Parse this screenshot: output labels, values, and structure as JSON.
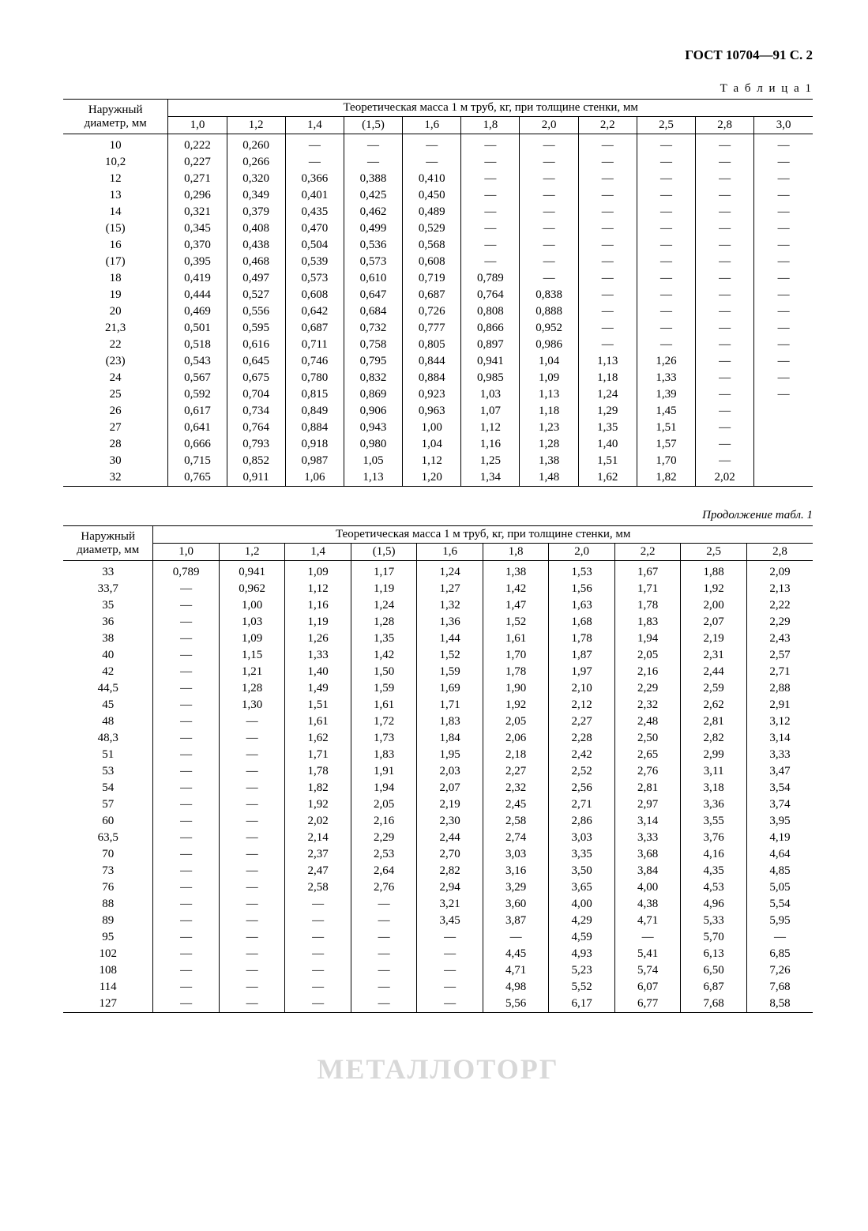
{
  "header": "ГОСТ 10704—91 С. 2",
  "table_label": "Т а б л и ц а  1",
  "cont_label": "Продолжение табл. 1",
  "dash": "—",
  "rowhead_label": "Наружный диаметр, мм",
  "spanner": "Теоретическая масса 1 м труб, кг, при толщине стенки, мм",
  "table1": {
    "cols": [
      "1,0",
      "1,2",
      "1,4",
      "(1,5)",
      "1,6",
      "1,8",
      "2,0",
      "2,2",
      "2,5",
      "2,8",
      "3,0"
    ],
    "rows": [
      {
        "d": "10",
        "v": [
          "0,222",
          "0,260",
          "—",
          "—",
          "—",
          "—",
          "—",
          "—",
          "—",
          "—",
          "—"
        ]
      },
      {
        "d": "10,2",
        "v": [
          "0,227",
          "0,266",
          "—",
          "—",
          "—",
          "—",
          "—",
          "—",
          "—",
          "—",
          "—"
        ]
      },
      {
        "d": "12",
        "v": [
          "0,271",
          "0,320",
          "0,366",
          "0,388",
          "0,410",
          "—",
          "—",
          "—",
          "—",
          "—",
          "—"
        ]
      },
      {
        "d": "13",
        "v": [
          "0,296",
          "0,349",
          "0,401",
          "0,425",
          "0,450",
          "—",
          "—",
          "—",
          "—",
          "—",
          "—"
        ]
      },
      {
        "d": "14",
        "v": [
          "0,321",
          "0,379",
          "0,435",
          "0,462",
          "0,489",
          "—",
          "—",
          "—",
          "—",
          "—",
          "—"
        ]
      },
      {
        "d": "(15)",
        "v": [
          "0,345",
          "0,408",
          "0,470",
          "0,499",
          "0,529",
          "—",
          "—",
          "—",
          "—",
          "—",
          "—"
        ]
      },
      {
        "d": "16",
        "v": [
          "0,370",
          "0,438",
          "0,504",
          "0,536",
          "0,568",
          "—",
          "—",
          "—",
          "—",
          "—",
          "—"
        ]
      },
      {
        "d": "(17)",
        "v": [
          "0,395",
          "0,468",
          "0,539",
          "0,573",
          "0,608",
          "—",
          "—",
          "—",
          "—",
          "—",
          "—"
        ]
      },
      {
        "d": "18",
        "v": [
          "0,419",
          "0,497",
          "0,573",
          "0,610",
          "0,719",
          "0,789",
          "—",
          "—",
          "—",
          "—",
          "—"
        ]
      },
      {
        "d": "19",
        "v": [
          "0,444",
          "0,527",
          "0,608",
          "0,647",
          "0,687",
          "0,764",
          "0,838",
          "—",
          "—",
          "—",
          "—"
        ]
      },
      {
        "d": "20",
        "v": [
          "0,469",
          "0,556",
          "0,642",
          "0,684",
          "0,726",
          "0,808",
          "0,888",
          "—",
          "—",
          "—",
          "—"
        ]
      },
      {
        "d": "21,3",
        "v": [
          "0,501",
          "0,595",
          "0,687",
          "0,732",
          "0,777",
          "0,866",
          "0,952",
          "—",
          "—",
          "—",
          "—"
        ]
      },
      {
        "d": "22",
        "v": [
          "0,518",
          "0,616",
          "0,711",
          "0,758",
          "0,805",
          "0,897",
          "0,986",
          "—",
          "—",
          "—",
          "—"
        ]
      },
      {
        "d": "(23)",
        "v": [
          "0,543",
          "0,645",
          "0,746",
          "0,795",
          "0,844",
          "0,941",
          "1,04",
          "1,13",
          "1,26",
          "—",
          "—"
        ]
      },
      {
        "d": "24",
        "v": [
          "0,567",
          "0,675",
          "0,780",
          "0,832",
          "0,884",
          "0,985",
          "1,09",
          "1,18",
          "1,33",
          "—",
          "—"
        ]
      },
      {
        "d": "25",
        "v": [
          "0,592",
          "0,704",
          "0,815",
          "0,869",
          "0,923",
          "1,03",
          "1,13",
          "1,24",
          "1,39",
          "—",
          "—"
        ]
      },
      {
        "d": "26",
        "v": [
          "0,617",
          "0,734",
          "0,849",
          "0,906",
          "0,963",
          "1,07",
          "1,18",
          "1,29",
          "1,45",
          "—",
          ""
        ]
      },
      {
        "d": "27",
        "v": [
          "0,641",
          "0,764",
          "0,884",
          "0,943",
          "1,00",
          "1,12",
          "1,23",
          "1,35",
          "1,51",
          "—",
          ""
        ]
      },
      {
        "d": "28",
        "v": [
          "0,666",
          "0,793",
          "0,918",
          "0,980",
          "1,04",
          "1,16",
          "1,28",
          "1,40",
          "1,57",
          "—",
          ""
        ]
      },
      {
        "d": "30",
        "v": [
          "0,715",
          "0,852",
          "0,987",
          "1,05",
          "1,12",
          "1,25",
          "1,38",
          "1,51",
          "1,70",
          "—",
          ""
        ]
      },
      {
        "d": "32",
        "v": [
          "0,765",
          "0,911",
          "1,06",
          "1,13",
          "1,20",
          "1,34",
          "1,48",
          "1,62",
          "1,82",
          "2,02",
          ""
        ]
      }
    ]
  },
  "table2": {
    "cols": [
      "1,0",
      "1,2",
      "1,4",
      "(1,5)",
      "1,6",
      "1,8",
      "2,0",
      "2,2",
      "2,5",
      "2,8"
    ],
    "rows": [
      {
        "d": "33",
        "v": [
          "0,789",
          "0,941",
          "1,09",
          "1,17",
          "1,24",
          "1,38",
          "1,53",
          "1,67",
          "1,88",
          "2,09"
        ]
      },
      {
        "d": "33,7",
        "v": [
          "—",
          "0,962",
          "1,12",
          "1,19",
          "1,27",
          "1,42",
          "1,56",
          "1,71",
          "1,92",
          "2,13"
        ]
      },
      {
        "d": "35",
        "v": [
          "—",
          "1,00",
          "1,16",
          "1,24",
          "1,32",
          "1,47",
          "1,63",
          "1,78",
          "2,00",
          "2,22"
        ]
      },
      {
        "d": "36",
        "v": [
          "—",
          "1,03",
          "1,19",
          "1,28",
          "1,36",
          "1,52",
          "1,68",
          "1,83",
          "2,07",
          "2,29"
        ]
      },
      {
        "d": "38",
        "v": [
          "—",
          "1,09",
          "1,26",
          "1,35",
          "1,44",
          "1,61",
          "1,78",
          "1,94",
          "2,19",
          "2,43"
        ]
      },
      {
        "d": "40",
        "v": [
          "—",
          "1,15",
          "1,33",
          "1,42",
          "1,52",
          "1,70",
          "1,87",
          "2,05",
          "2,31",
          "2,57"
        ]
      },
      {
        "d": "42",
        "v": [
          "—",
          "1,21",
          "1,40",
          "1,50",
          "1,59",
          "1,78",
          "1,97",
          "2,16",
          "2,44",
          "2,71"
        ]
      },
      {
        "d": "44,5",
        "v": [
          "—",
          "1,28",
          "1,49",
          "1,59",
          "1,69",
          "1,90",
          "2,10",
          "2,29",
          "2,59",
          "2,88"
        ]
      },
      {
        "d": "45",
        "v": [
          "—",
          "1,30",
          "1,51",
          "1,61",
          "1,71",
          "1,92",
          "2,12",
          "2,32",
          "2,62",
          "2,91"
        ]
      },
      {
        "d": "48",
        "v": [
          "—",
          "—",
          "1,61",
          "1,72",
          "1,83",
          "2,05",
          "2,27",
          "2,48",
          "2,81",
          "3,12"
        ]
      },
      {
        "d": "48,3",
        "v": [
          "—",
          "—",
          "1,62",
          "1,73",
          "1,84",
          "2,06",
          "2,28",
          "2,50",
          "2,82",
          "3,14"
        ]
      },
      {
        "d": "51",
        "v": [
          "—",
          "—",
          "1,71",
          "1,83",
          "1,95",
          "2,18",
          "2,42",
          "2,65",
          "2,99",
          "3,33"
        ]
      },
      {
        "d": "53",
        "v": [
          "—",
          "—",
          "1,78",
          "1,91",
          "2,03",
          "2,27",
          "2,52",
          "2,76",
          "3,11",
          "3,47"
        ]
      },
      {
        "d": "54",
        "v": [
          "—",
          "—",
          "1,82",
          "1,94",
          "2,07",
          "2,32",
          "2,56",
          "2,81",
          "3,18",
          "3,54"
        ]
      },
      {
        "d": "57",
        "v": [
          "—",
          "—",
          "1,92",
          "2,05",
          "2,19",
          "2,45",
          "2,71",
          "2,97",
          "3,36",
          "3,74"
        ]
      },
      {
        "d": "60",
        "v": [
          "—",
          "—",
          "2,02",
          "2,16",
          "2,30",
          "2,58",
          "2,86",
          "3,14",
          "3,55",
          "3,95"
        ]
      },
      {
        "d": "63,5",
        "v": [
          "—",
          "—",
          "2,14",
          "2,29",
          "2,44",
          "2,74",
          "3,03",
          "3,33",
          "3,76",
          "4,19"
        ]
      },
      {
        "d": "70",
        "v": [
          "—",
          "—",
          "2,37",
          "2,53",
          "2,70",
          "3,03",
          "3,35",
          "3,68",
          "4,16",
          "4,64"
        ]
      },
      {
        "d": "73",
        "v": [
          "—",
          "—",
          "2,47",
          "2,64",
          "2,82",
          "3,16",
          "3,50",
          "3,84",
          "4,35",
          "4,85"
        ]
      },
      {
        "d": "76",
        "v": [
          "—",
          "—",
          "2,58",
          "2,76",
          "2,94",
          "3,29",
          "3,65",
          "4,00",
          "4,53",
          "5,05"
        ]
      },
      {
        "d": "88",
        "v": [
          "—",
          "—",
          "—",
          "—",
          "3,21",
          "3,60",
          "4,00",
          "4,38",
          "4,96",
          "5,54"
        ]
      },
      {
        "d": "89",
        "v": [
          "—",
          "—",
          "—",
          "—",
          "3,45",
          "3,87",
          "4,29",
          "4,71",
          "5,33",
          "5,95"
        ]
      },
      {
        "d": "95",
        "v": [
          "—",
          "—",
          "—",
          "—",
          "—",
          "—",
          "4,59",
          "—",
          "5,70",
          "—"
        ]
      },
      {
        "d": "102",
        "v": [
          "—",
          "—",
          "—",
          "—",
          "—",
          "4,45",
          "4,93",
          "5,41",
          "6,13",
          "6,85"
        ]
      },
      {
        "d": "108",
        "v": [
          "—",
          "—",
          "—",
          "—",
          "—",
          "4,71",
          "5,23",
          "5,74",
          "6,50",
          "7,26"
        ]
      },
      {
        "d": "114",
        "v": [
          "—",
          "—",
          "—",
          "—",
          "—",
          "4,98",
          "5,52",
          "6,07",
          "6,87",
          "7,68"
        ]
      },
      {
        "d": "127",
        "v": [
          "—",
          "—",
          "—",
          "—",
          "—",
          "5,56",
          "6,17",
          "6,77",
          "7,68",
          "8,58"
        ]
      }
    ]
  },
  "watermark": "МЕТАЛЛОТОРГ"
}
